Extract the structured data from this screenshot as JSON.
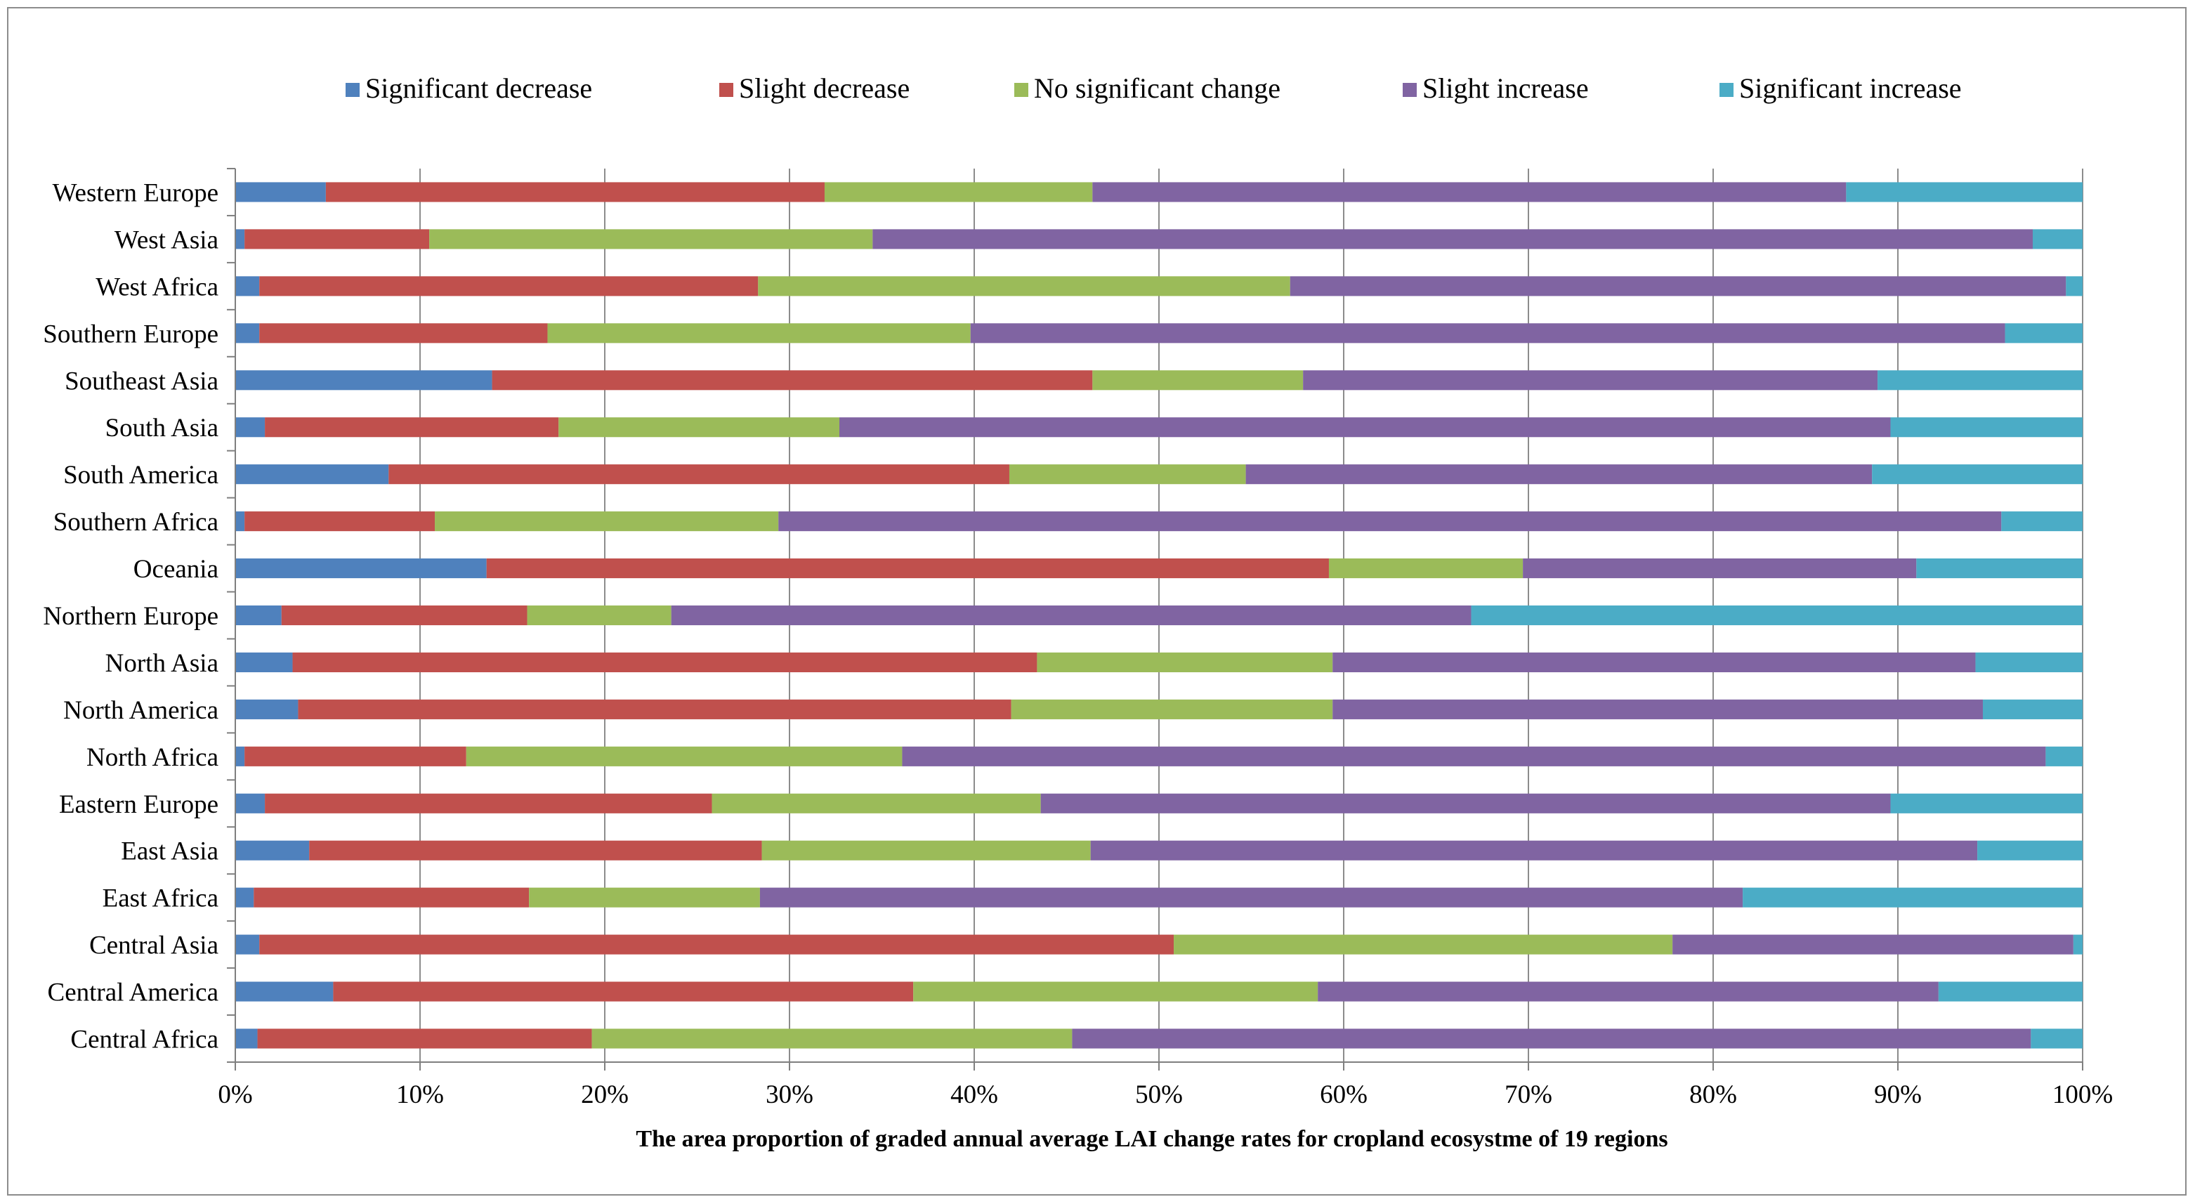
{
  "chart_data": {
    "type": "bar",
    "orientation": "horizontal",
    "stacked": "percent",
    "title": "",
    "xlabel": "The area proportion  of graded annual average LAI change rates for cropland  ecosystme of 19 regions",
    "ylabel": "",
    "xlim": [
      0,
      100
    ],
    "xticks": [
      "0%",
      "10%",
      "20%",
      "30%",
      "40%",
      "50%",
      "60%",
      "70%",
      "80%",
      "90%",
      "100%"
    ],
    "grid": true,
    "legend_position": "top",
    "categories": [
      "Western Europe",
      "West Asia",
      "West Africa",
      "Southern Europe",
      "Southeast Asia",
      "South Asia",
      "South America",
      "Southern Africa",
      "Oceania",
      "Northern Europe",
      "North Asia",
      "North America",
      "North Africa",
      "Eastern Europe",
      "East Asia",
      "East Africa",
      "Central Asia",
      "Central America",
      "Central Africa"
    ],
    "series": [
      {
        "name": "Significant decrease",
        "color": "#4F81BD",
        "values": [
          4.9,
          0.5,
          1.3,
          1.3,
          13.9,
          1.6,
          8.3,
          0.5,
          13.6,
          2.5,
          3.1,
          3.4,
          0.5,
          1.6,
          4.0,
          1.0,
          1.3,
          5.3,
          1.2
        ]
      },
      {
        "name": "Slight decrease",
        "color": "#C0504D",
        "values": [
          27.0,
          10.0,
          27.0,
          15.6,
          32.5,
          15.9,
          33.6,
          10.3,
          45.6,
          13.3,
          40.3,
          38.6,
          12.0,
          24.2,
          24.5,
          14.9,
          49.5,
          31.4,
          18.1
        ]
      },
      {
        "name": "No significant change",
        "color": "#9BBB59",
        "values": [
          14.5,
          24.0,
          28.8,
          22.9,
          11.4,
          15.2,
          12.8,
          18.6,
          10.5,
          7.8,
          16.0,
          17.4,
          23.6,
          17.8,
          17.8,
          12.5,
          27.0,
          21.9,
          26.0
        ]
      },
      {
        "name": "Slight increase",
        "color": "#8064A2",
        "values": [
          40.8,
          62.8,
          42.0,
          56.0,
          31.1,
          56.9,
          33.9,
          66.2,
          21.3,
          43.3,
          34.8,
          35.2,
          61.9,
          46.0,
          48.0,
          53.2,
          21.7,
          33.6,
          51.9
        ]
      },
      {
        "name": "Significant increase",
        "color": "#4BACC6",
        "values": [
          12.8,
          2.7,
          0.9,
          4.2,
          11.1,
          10.4,
          11.4,
          4.4,
          9.0,
          33.1,
          5.8,
          5.4,
          2.0,
          10.4,
          5.7,
          18.4,
          0.5,
          7.8,
          2.8
        ]
      }
    ]
  }
}
